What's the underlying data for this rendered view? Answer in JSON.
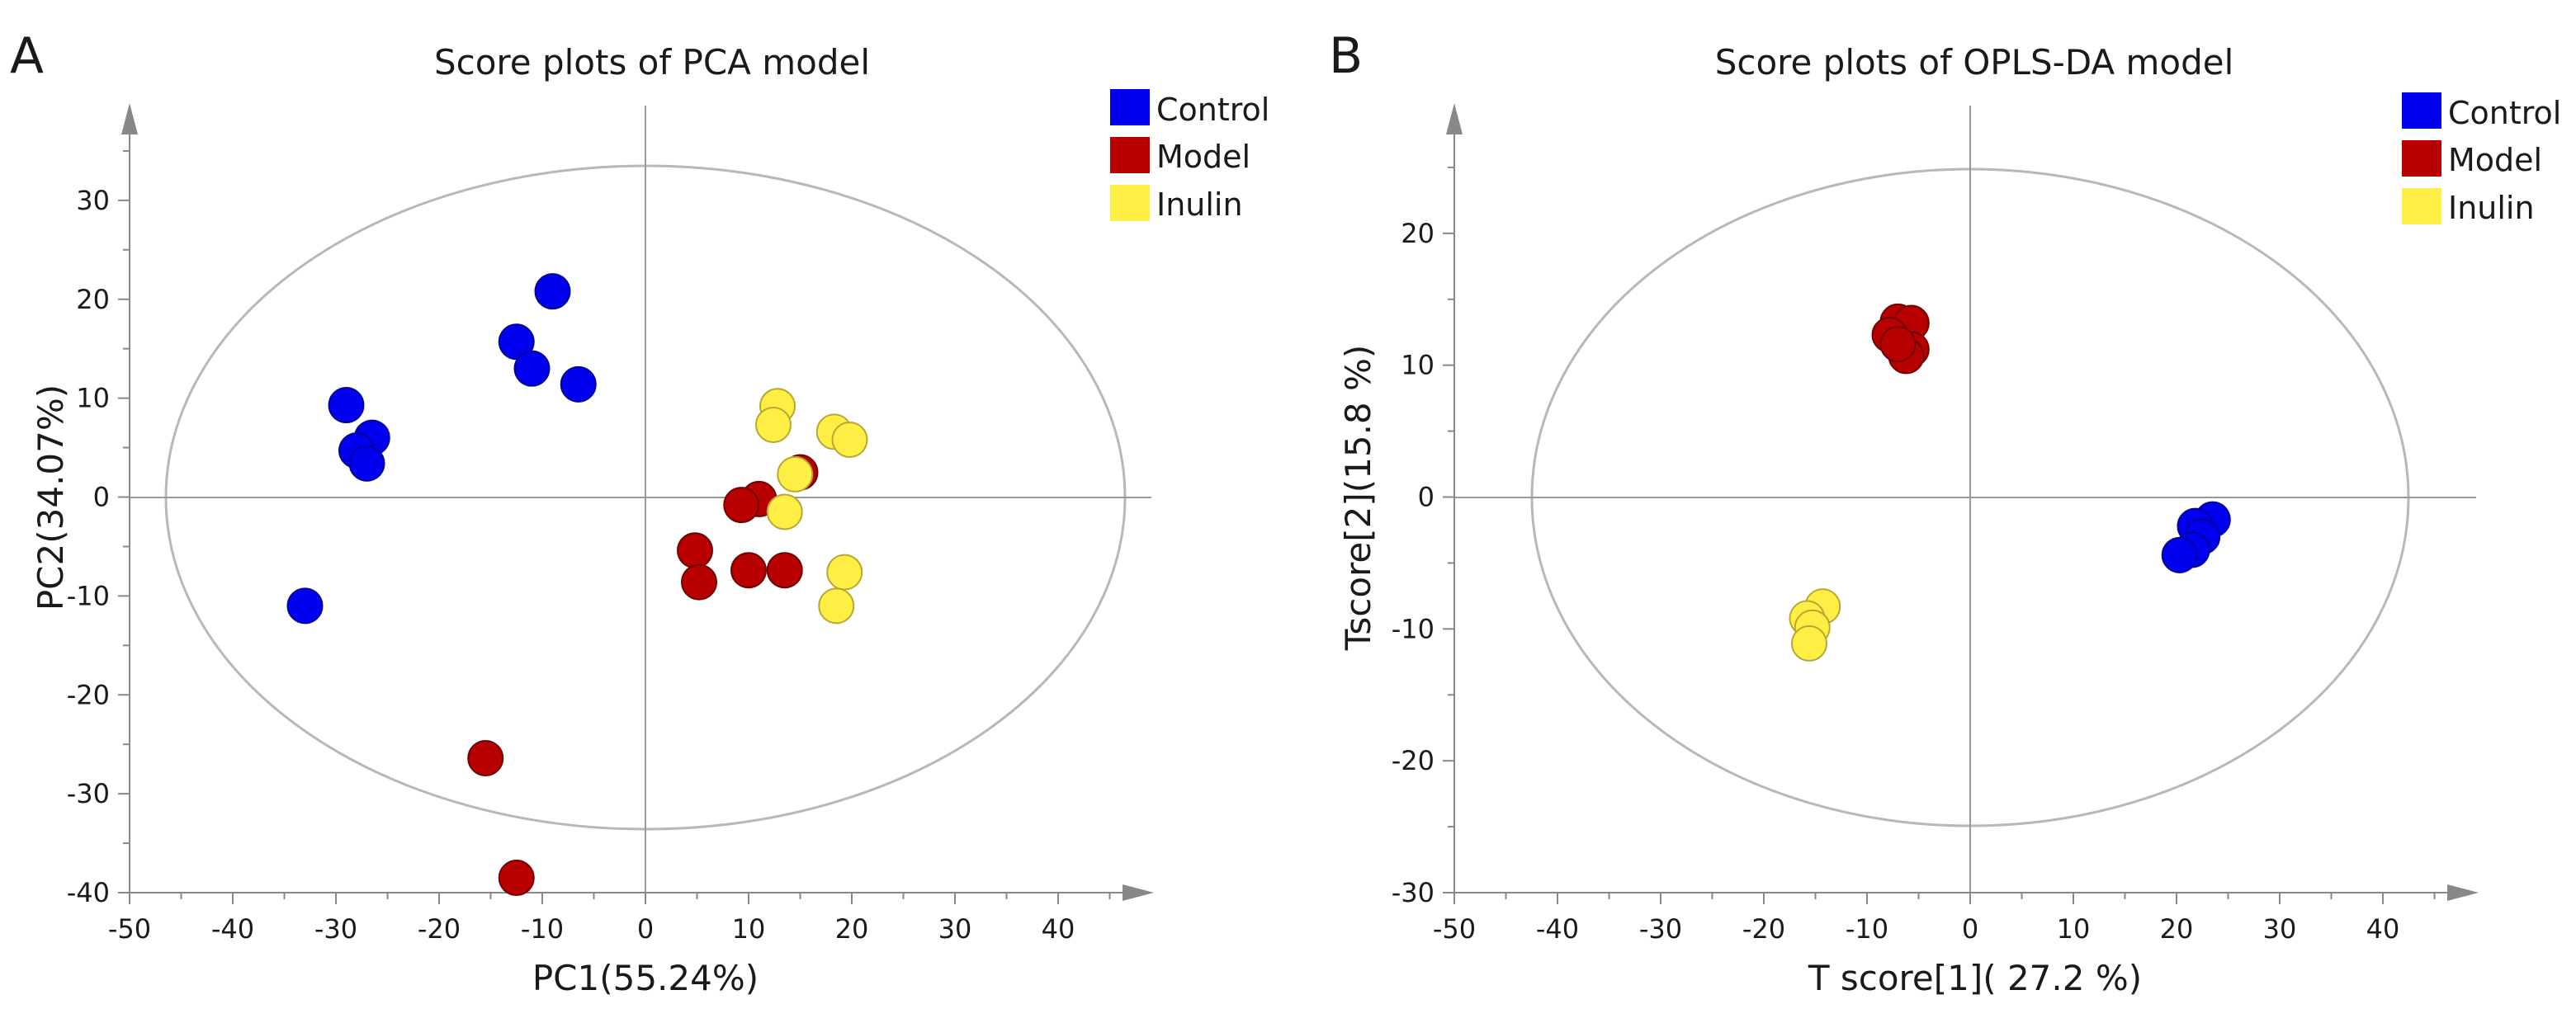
{
  "chart_data": [
    {
      "panel_label": "A",
      "type": "scatter",
      "title": "Score plots of PCA model",
      "xlabel": "PC1(55.24%)",
      "ylabel": "PC2(34.07%)",
      "xlim": [
        -50,
        50
      ],
      "ylim": [
        -40,
        40
      ],
      "xticks": [
        -50,
        -40,
        -30,
        -20,
        -10,
        0,
        10,
        20,
        30,
        40
      ],
      "yticks": [
        -40,
        -30,
        -20,
        -10,
        0,
        10,
        20,
        30
      ],
      "ellipse": {
        "rx": 46.5,
        "ry": 33.5
      },
      "legend": {
        "position": "top-right",
        "entries": [
          "Control",
          "Model",
          "Inulin"
        ]
      },
      "series": [
        {
          "name": "Control",
          "color": "#0000ee",
          "points": [
            [
              -9,
              20.8
            ],
            [
              -12.5,
              15.7
            ],
            [
              -11,
              13
            ],
            [
              -6.5,
              11.4
            ],
            [
              -29,
              9.3
            ],
            [
              -26.5,
              6
            ],
            [
              -28,
              4.7
            ],
            [
              -27,
              3.4
            ],
            [
              -33,
              -11
            ]
          ]
        },
        {
          "name": "Model",
          "color": "#b80000",
          "points": [
            [
              15,
              2.5
            ],
            [
              11,
              -0.2
            ],
            [
              9.3,
              -0.8
            ],
            [
              4.8,
              -5.4
            ],
            [
              5.2,
              -8.6
            ],
            [
              10,
              -7.4
            ],
            [
              13.5,
              -7.4
            ],
            [
              -15.5,
              -26.4
            ],
            [
              -12.5,
              -38.5
            ]
          ]
        },
        {
          "name": "Inulin",
          "color": "#ffee44",
          "points": [
            [
              12.8,
              9.2
            ],
            [
              12.4,
              7.3
            ],
            [
              18.3,
              6.6
            ],
            [
              19.8,
              5.8
            ],
            [
              14.5,
              2.3
            ],
            [
              13.5,
              -1.5
            ],
            [
              19.3,
              -7.6
            ],
            [
              18.5,
              -11
            ]
          ]
        }
      ]
    },
    {
      "panel_label": "B",
      "type": "scatter",
      "title": "Score plots of OPLS-DA model",
      "xlabel": "T score[1]( 27.2 %)",
      "ylabel": "Tscore[2](15.8 %)",
      "xlim": [
        -50,
        50
      ],
      "ylim": [
        -30,
        30
      ],
      "xticks": [
        -50,
        -40,
        -30,
        -20,
        -10,
        0,
        10,
        20,
        30,
        40
      ],
      "yticks": [
        -30,
        -20,
        -10,
        0,
        10,
        20
      ],
      "ellipse": {
        "rx": 42.5,
        "ry": 25
      },
      "legend": {
        "position": "top-right",
        "entries": [
          "Control",
          "Model",
          "Inulin"
        ]
      },
      "series": [
        {
          "name": "Control",
          "color": "#0000ee",
          "points": [
            [
              23.5,
              -1.7
            ],
            [
              21.8,
              -2.2
            ],
            [
              22.5,
              -3
            ],
            [
              21.5,
              -4
            ],
            [
              20.3,
              -4.4
            ]
          ]
        },
        {
          "name": "Model",
          "color": "#b80000",
          "points": [
            [
              -7,
              13.3
            ],
            [
              -5.7,
              13.2
            ],
            [
              -7.8,
              12.3
            ],
            [
              -5.7,
              11.2
            ],
            [
              -6.2,
              10.7
            ],
            [
              -7,
              11.6
            ]
          ]
        },
        {
          "name": "Inulin",
          "color": "#ffee44",
          "points": [
            [
              -14.3,
              -8.3
            ],
            [
              -15.8,
              -9.2
            ],
            [
              -15.3,
              -9.9
            ],
            [
              -15.6,
              -11.1
            ]
          ]
        }
      ]
    }
  ]
}
